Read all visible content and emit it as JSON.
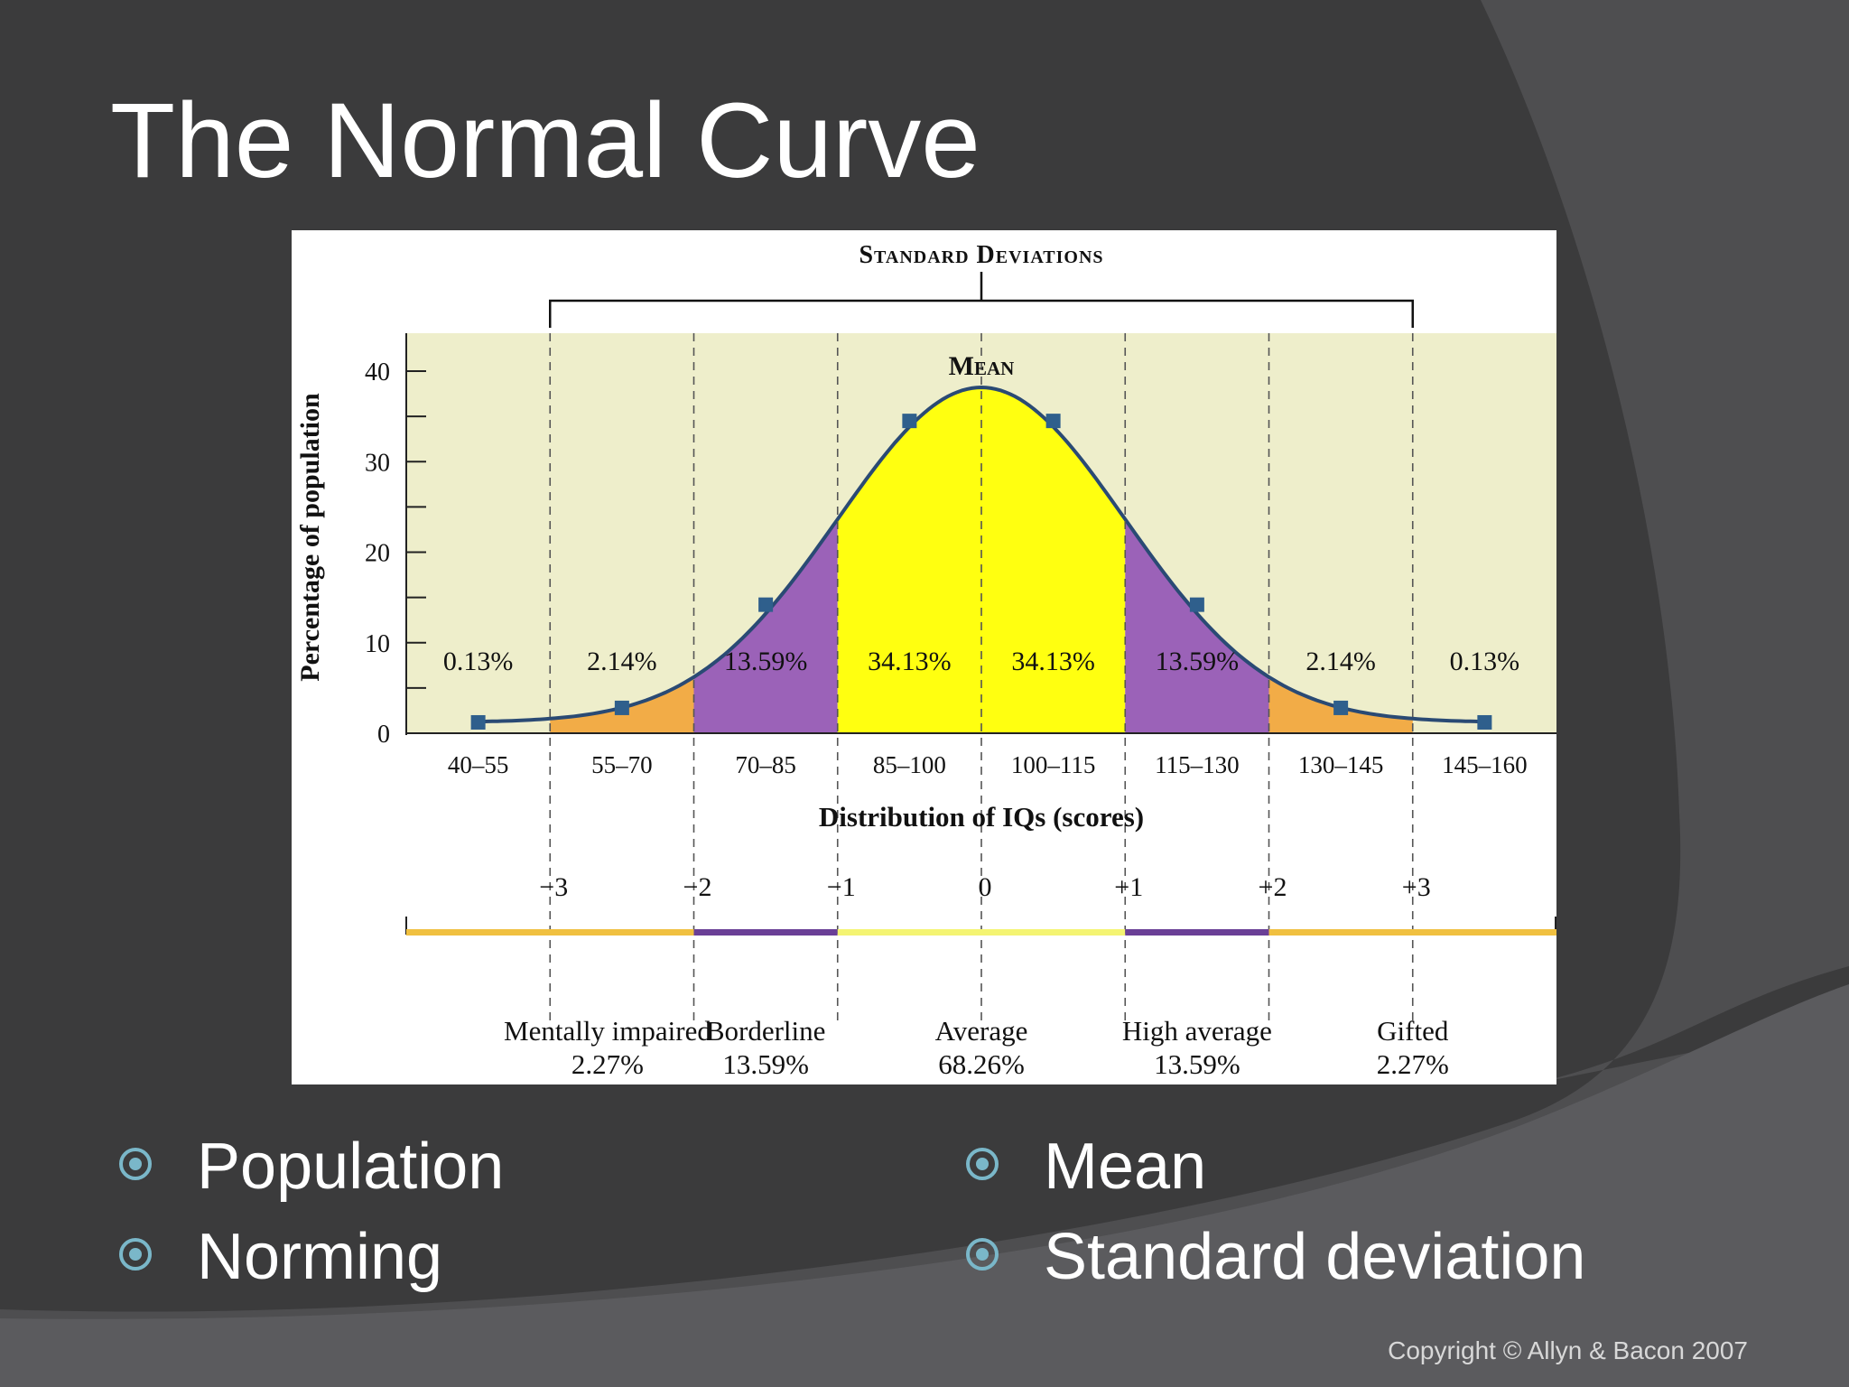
{
  "slide": {
    "title": "The Normal Curve",
    "copyright": "Copyright © Allyn & Bacon 2007",
    "bullets_left": [
      "Population",
      "Norming"
    ],
    "bullets_right": [
      "Mean",
      "Standard deviation"
    ],
    "colors": {
      "background": "#3b3b3c",
      "background_swoosh": "#4e4e50",
      "bullet_mark": "#7ab7c9"
    }
  },
  "chart_data": {
    "type": "area",
    "title": "Standard Deviations",
    "mean_label": "Mean",
    "ylabel": "Percentage of population",
    "xlabel": "Distribution of IQs (scores)",
    "ylim": [
      0,
      40
    ],
    "y_ticks": [
      "0",
      "10",
      "20",
      "30",
      "40"
    ],
    "categories": [
      "40–55",
      "55–70",
      "70–85",
      "85–100",
      "100–115",
      "115–130",
      "130–145",
      "145–160"
    ],
    "percentages": [
      "0.13%",
      "2.14%",
      "13.59%",
      "34.13%",
      "34.13%",
      "13.59%",
      "2.14%",
      "0.13%"
    ],
    "curve_points_y": [
      1.2,
      2.8,
      14.2,
      34.5,
      34.5,
      14.2,
      2.8,
      1.2
    ],
    "iq_range": [
      40,
      160
    ],
    "mean_iq": 100,
    "sd_iq": 15,
    "sd_labels": [
      "−3",
      "−2",
      "−1",
      "0",
      "+1",
      "+2",
      "+3"
    ],
    "classifications": [
      {
        "name": "Mentally impaired",
        "pct": "2.27%"
      },
      {
        "name": "Borderline",
        "pct": "13.59%"
      },
      {
        "name": "Average",
        "pct": "68.26%"
      },
      {
        "name": "High average",
        "pct": "13.59%"
      },
      {
        "name": "Gifted",
        "pct": "2.27%"
      }
    ],
    "grid": false,
    "colors": {
      "plot_bg": "#eeeecb",
      "tail": "#f2a030",
      "band_1_2sd": "#9b62b8",
      "band_0_1sd": "#ffff10",
      "curve": "#2a4a74",
      "marker": "#2f5f8c",
      "bar_orange": "#f0c040",
      "bar_purple": "#6a3f96",
      "bar_yellow": "#f4f472"
    }
  }
}
